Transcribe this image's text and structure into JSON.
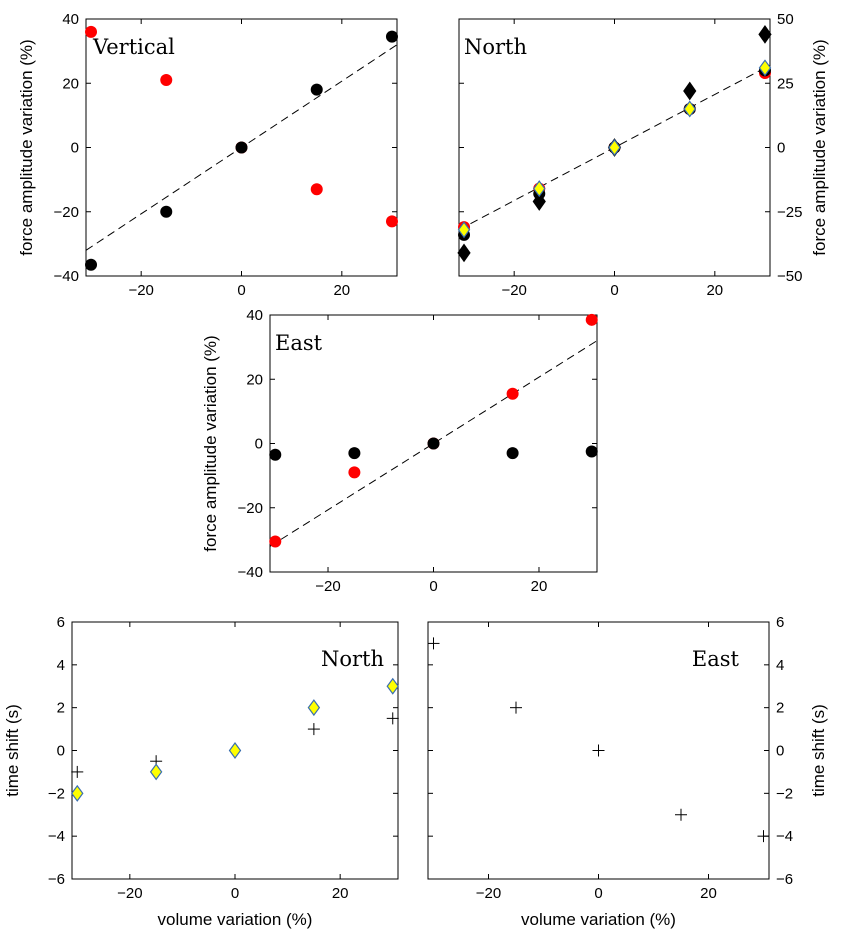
{
  "chart_data": [
    {
      "id": "vertical",
      "type": "scatter",
      "title": "Vertical",
      "ylabel": "force amplitude variation (%)",
      "xlabel": "",
      "xlim": [
        -31,
        31
      ],
      "ylim": [
        -40,
        40
      ],
      "xticks": [
        -20,
        0,
        20
      ],
      "yticks": [
        -40,
        -20,
        0,
        20,
        40
      ],
      "series": [
        {
          "marker": "dot",
          "color": "#ff0000",
          "x": [
            -30,
            -15,
            0,
            15,
            30
          ],
          "y": [
            36,
            21,
            0,
            -13,
            -23
          ]
        },
        {
          "marker": "dot",
          "color": "#000000",
          "x": [
            -30,
            -15,
            0,
            15,
            30
          ],
          "y": [
            -36.5,
            -20,
            0,
            18,
            34.5
          ]
        }
      ],
      "fit_line": {
        "x": [
          -31,
          31
        ],
        "y": [
          -32,
          32
        ]
      }
    },
    {
      "id": "north-force",
      "type": "scatter",
      "title": "North",
      "ylabel": "force amplitude variation (%)",
      "xlabel": "",
      "xlim": [
        -31,
        31
      ],
      "ylim": [
        -50,
        50
      ],
      "xticks": [
        -20,
        0,
        20
      ],
      "yticks": [
        -50,
        -25,
        0,
        25,
        50
      ],
      "yaxis_side": "right",
      "series": [
        {
          "marker": "dot",
          "color": "#ff0000",
          "x": [
            -30,
            -15,
            0,
            15,
            30
          ],
          "y": [
            -31,
            -16,
            0,
            15,
            29
          ]
        },
        {
          "marker": "dot",
          "color": "#000000",
          "x": [
            -30,
            -15,
            0,
            15,
            30
          ],
          "y": [
            -34,
            -18,
            0,
            15,
            30
          ]
        },
        {
          "marker": "diamond",
          "color": "#000000",
          "x": [
            -30,
            -15,
            0,
            15,
            30
          ],
          "y": [
            -41,
            -21,
            0,
            22,
            44
          ]
        },
        {
          "marker": "diamond",
          "color": "#ffff00",
          "x": [
            -30,
            -15,
            0,
            15,
            30
          ],
          "y": [
            -32,
            -16,
            0,
            15,
            31
          ]
        }
      ],
      "fit_line": {
        "x": [
          -31,
          31
        ],
        "y": [
          -32,
          32
        ]
      }
    },
    {
      "id": "east-force",
      "type": "scatter",
      "title": "East",
      "ylabel": "force amplitude variation (%)",
      "xlabel": "",
      "xlim": [
        -31,
        31
      ],
      "ylim": [
        -40,
        40
      ],
      "xticks": [
        -20,
        0,
        20
      ],
      "yticks": [
        -40,
        -20,
        0,
        20,
        40
      ],
      "series": [
        {
          "marker": "dot",
          "color": "#ff0000",
          "x": [
            -30,
            -15,
            0,
            15,
            30
          ],
          "y": [
            -30.5,
            -9,
            0,
            15.5,
            38.5
          ]
        },
        {
          "marker": "dot",
          "color": "#000000",
          "x": [
            -30,
            -15,
            0,
            15,
            30
          ],
          "y": [
            -3.5,
            -3,
            0,
            -3,
            -2.5
          ]
        }
      ],
      "fit_line": {
        "x": [
          -31,
          31
        ],
        "y": [
          -32,
          32
        ]
      }
    },
    {
      "id": "north-shift",
      "type": "scatter",
      "title": "North",
      "ylabel": "time shift (s)",
      "xlabel": "volume variation (%)",
      "xlim": [
        -31,
        31
      ],
      "ylim": [
        -6,
        6
      ],
      "xticks": [
        -20,
        0,
        20
      ],
      "yticks": [
        -6,
        -4,
        -2,
        0,
        2,
        4,
        6
      ],
      "series": [
        {
          "marker": "plus",
          "color": "#000000",
          "x": [
            -30,
            -15,
            0,
            15,
            30
          ],
          "y": [
            -1,
            -0.5,
            0,
            1,
            1.5
          ]
        },
        {
          "marker": "diamond",
          "color": "#ffff00",
          "x": [
            -30,
            -15,
            0,
            15,
            30
          ],
          "y": [
            -2,
            -1,
            0,
            2,
            3
          ]
        }
      ]
    },
    {
      "id": "east-shift",
      "type": "scatter",
      "title": "East",
      "ylabel": "time shift (s)",
      "xlabel": "volume variation (%)",
      "xlim": [
        -31,
        31
      ],
      "ylim": [
        -6,
        6
      ],
      "xticks": [
        -20,
        0,
        20
      ],
      "yticks": [
        -6,
        -4,
        -2,
        0,
        2,
        4,
        6
      ],
      "yaxis_side": "right",
      "series": [
        {
          "marker": "plus",
          "color": "#000000",
          "x": [
            -30,
            -15,
            0,
            15,
            30
          ],
          "y": [
            5,
            2,
            0,
            -3,
            -4
          ]
        }
      ]
    }
  ]
}
